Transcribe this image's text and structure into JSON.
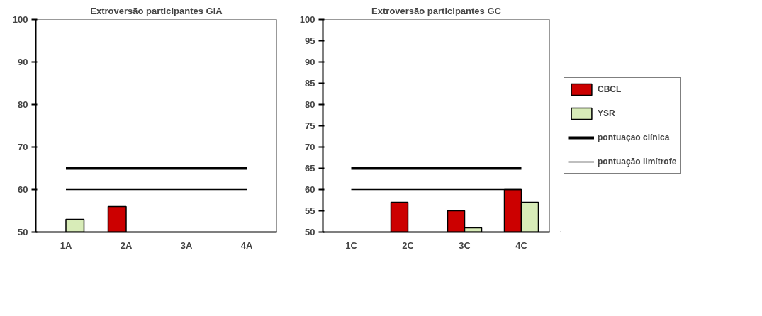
{
  "chart_data": [
    {
      "type": "bar",
      "title": "Extroversão participantes GIA",
      "categories": [
        "1A",
        "2A",
        "3A",
        "4A"
      ],
      "ylim": [
        50,
        100
      ],
      "yticks": [
        50,
        60,
        70,
        80,
        90,
        100
      ],
      "grid": false,
      "series": [
        {
          "color": "#cc0000",
          "values": [
            null,
            56,
            null,
            null
          ]
        },
        {
          "color": "#d8ecb8",
          "values": [
            53,
            null,
            null,
            null
          ]
        },
        {
          "type": "line",
          "color": "#000000",
          "values": [
            65,
            65,
            65,
            65
          ]
        },
        {
          "type": "line",
          "color": "#000000",
          "values": [
            60,
            60,
            60,
            60
          ]
        }
      ]
    },
    {
      "type": "bar",
      "title": "Extroversão participantes GC",
      "categories": [
        "1C",
        "2C",
        "3C",
        "4C"
      ],
      "ylim": [
        50,
        100
      ],
      "yticks": [
        50,
        55,
        60,
        65,
        70,
        75,
        80,
        85,
        90,
        95,
        100
      ],
      "grid": false,
      "legend": "right",
      "series": [
        {
          "name": "CBCL",
          "color": "#cc0000",
          "values": [
            null,
            57,
            55,
            60
          ]
        },
        {
          "name": "YSR",
          "color": "#d8ecb8",
          "values": [
            null,
            null,
            51,
            57
          ]
        },
        {
          "type": "line",
          "name": "pontuaçao clínica",
          "color": "#000000",
          "values": [
            65,
            65,
            65,
            65
          ]
        },
        {
          "type": "line",
          "name": "pontuação limítrofe",
          "color": "#000000",
          "values": [
            60,
            60,
            60,
            60
          ]
        }
      ]
    }
  ]
}
